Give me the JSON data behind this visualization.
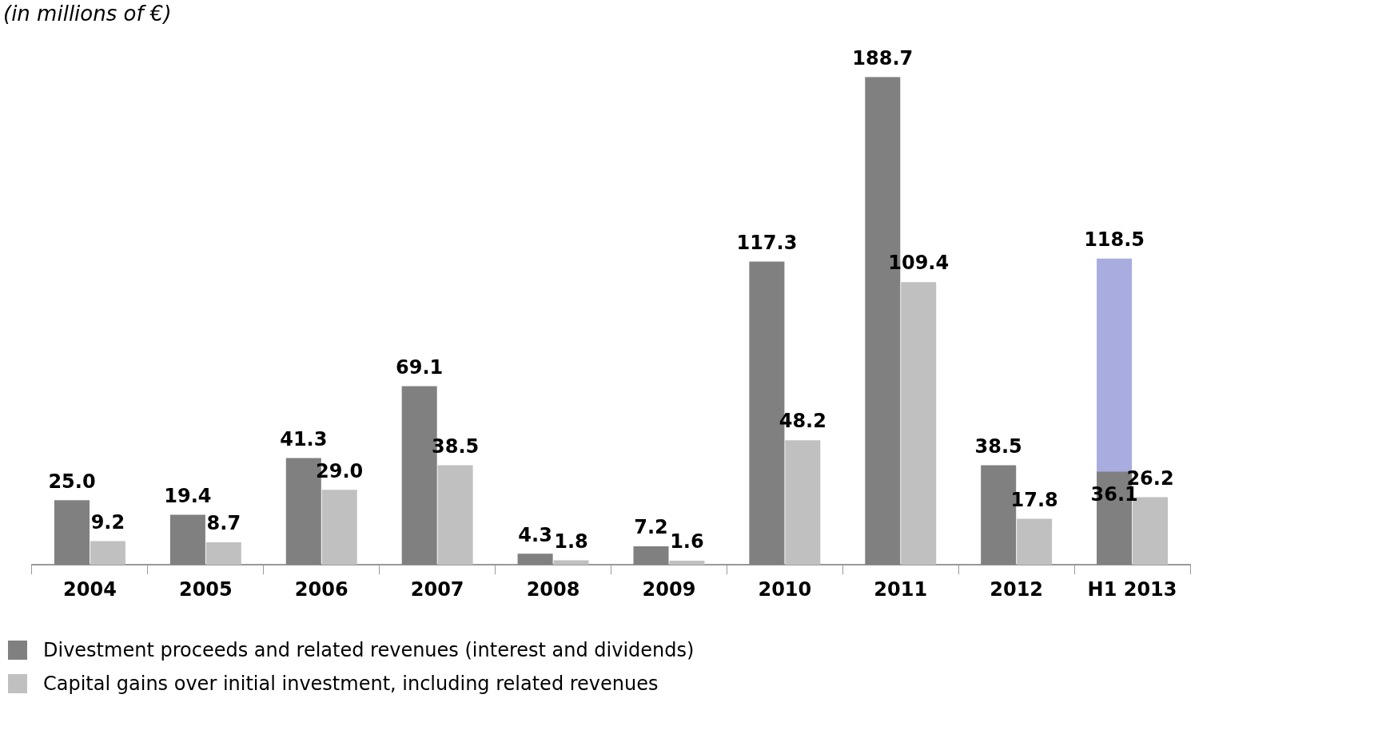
{
  "chart_data": {
    "type": "bar",
    "title": "(in millions of €)",
    "categories": [
      "2004",
      "2005",
      "2006",
      "2007",
      "2008",
      "2009",
      "2010",
      "2011",
      "2012",
      "H1 2013"
    ],
    "series": [
      {
        "name": "Divestment proceeds and related revenues (interest and dividends)",
        "color": "#808080",
        "values": [
          25.0,
          19.4,
          41.3,
          69.1,
          4.3,
          7.2,
          117.3,
          188.7,
          38.5,
          36.1
        ],
        "value_labels": [
          "25.0",
          "19.4",
          "41.3",
          "69.1",
          "4.3",
          "7.2",
          "117.3",
          "188.7",
          "38.5",
          "36.1"
        ]
      },
      {
        "name": "Capital gains over initial investment, including related revenues",
        "color": "#c0c0c0",
        "values": [
          9.2,
          8.7,
          29.0,
          38.5,
          1.8,
          1.6,
          48.2,
          109.4,
          17.8,
          26.2
        ],
        "value_labels": [
          "9.2",
          "8.7",
          "29.0",
          "38.5",
          "1.8",
          "1.6",
          "48.2",
          "109.4",
          "17.8",
          "26.2"
        ]
      },
      {
        "color": "#a9acdf",
        "values": [
          null,
          null,
          null,
          null,
          null,
          null,
          null,
          null,
          null,
          118.5
        ],
        "value_labels": [
          null,
          null,
          null,
          null,
          null,
          null,
          null,
          null,
          null,
          "118.5"
        ]
      }
    ],
    "legend": "bottom left",
    "grid": false
  }
}
